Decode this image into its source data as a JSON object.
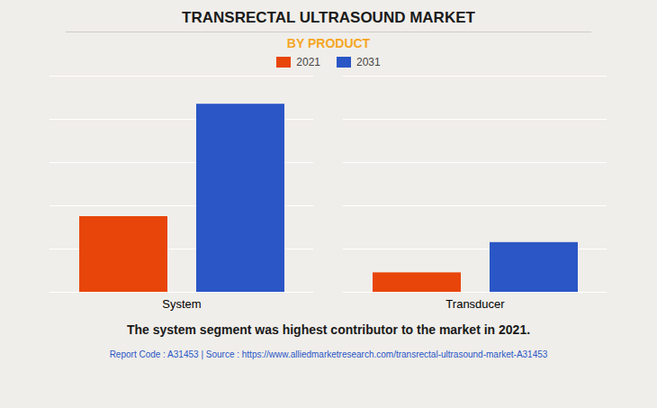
{
  "chart_data": {
    "type": "bar",
    "title": "TRANSRECTAL ULTRASOUND MARKET",
    "subtitle": "BY PRODUCT",
    "categories": [
      "System",
      "Transducer"
    ],
    "series": [
      {
        "name": "2021",
        "color": "#e8450a",
        "values": [
          3.5,
          0.9
        ]
      },
      {
        "name": "2031",
        "color": "#2a56c6",
        "values": [
          8.7,
          2.3
        ]
      }
    ],
    "ylim": [
      0,
      10
    ],
    "yticks": [
      0,
      2,
      4,
      6,
      8,
      10
    ],
    "grid": true,
    "legend": "top",
    "tick_labels": "x",
    "annotation": "The system segment was highest contributor to the market in 2021.",
    "footer": "Report Code : A31453  |  Source : https://www.alliedmarketresearch.com/transrectal-ultrasound-market-A31453"
  }
}
